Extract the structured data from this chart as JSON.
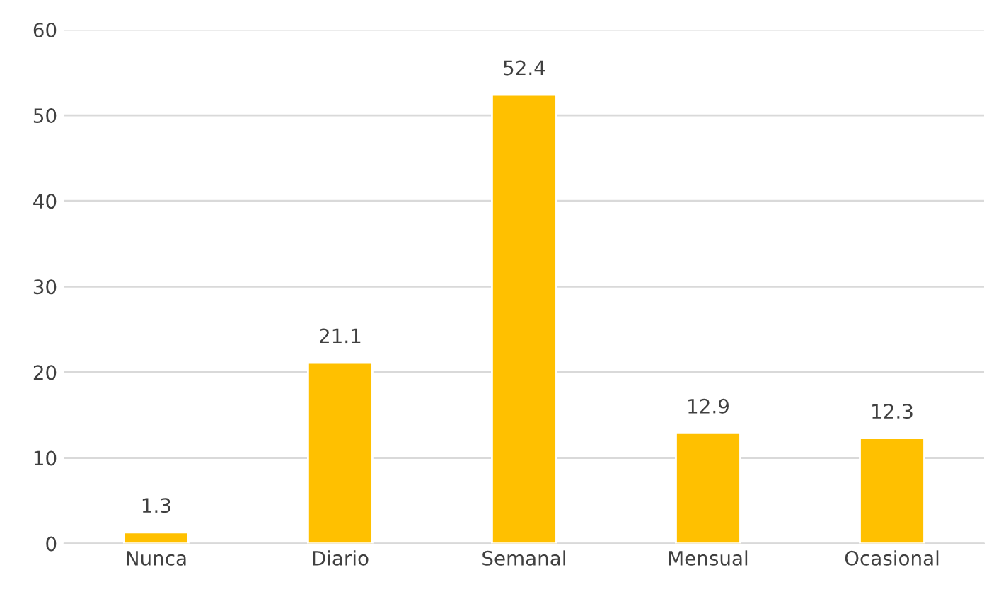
{
  "chart_data": {
    "type": "bar",
    "categories": [
      "Nunca",
      "Diario",
      "Semanal",
      "Mensual",
      "Ocasional"
    ],
    "values": [
      1.3,
      21.1,
      52.4,
      12.9,
      12.3
    ],
    "color": "#ffc000",
    "ylim": [
      0,
      60
    ],
    "yticks": [
      0,
      10,
      20,
      30,
      40,
      50,
      60
    ],
    "grid": "y",
    "data_labels": true
  }
}
